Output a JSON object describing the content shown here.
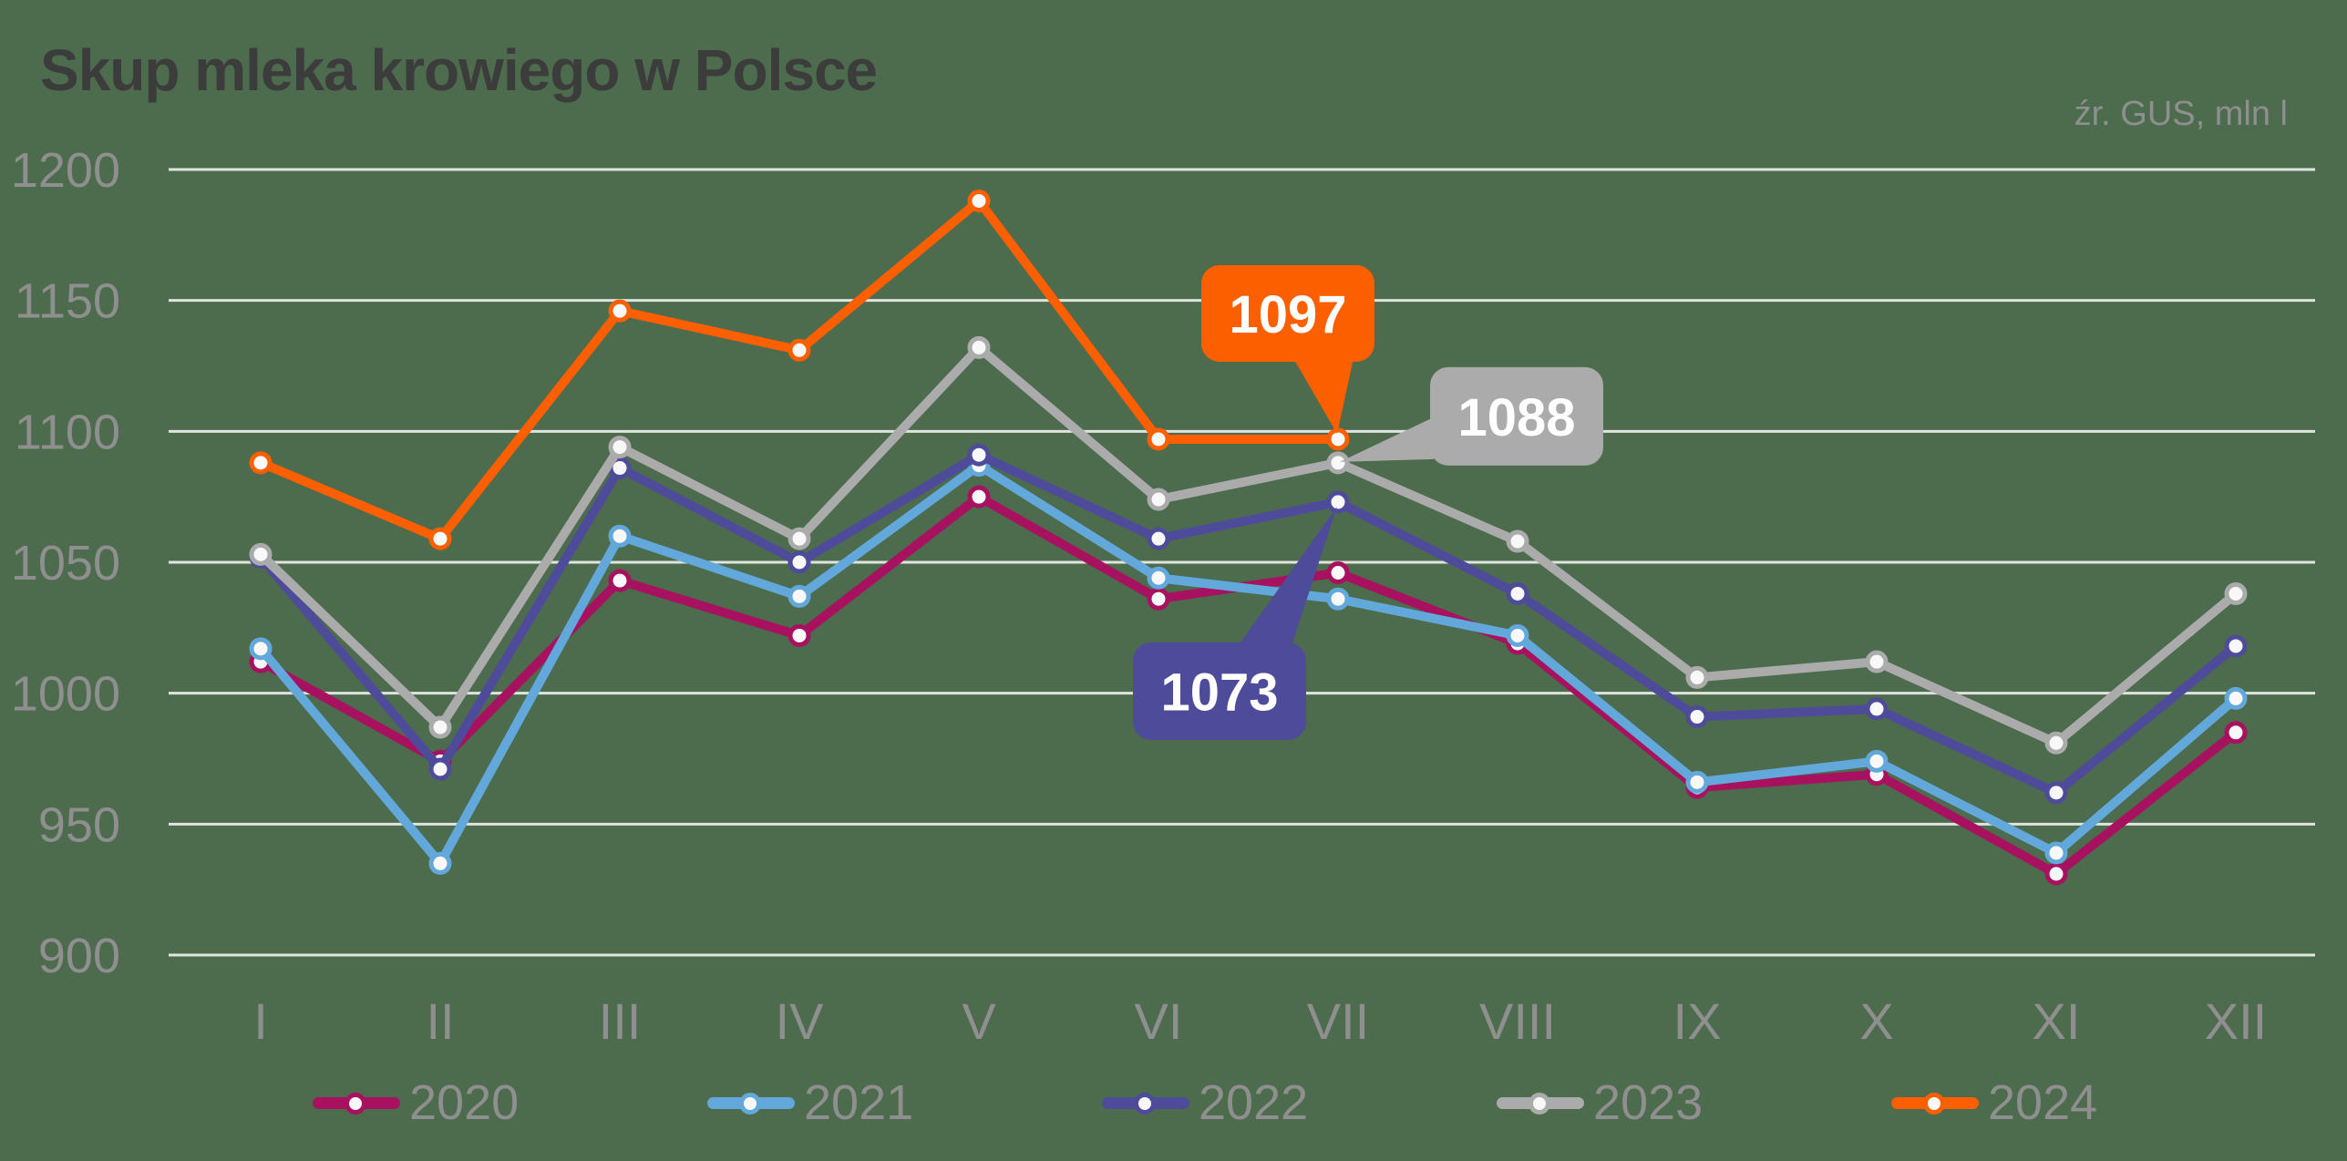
{
  "title": "Skup mleka krowiego w Polsce",
  "source_note": "źr. GUS, mln l",
  "colors": {
    "background": "#4d6b4d",
    "grid": "rgba(255,255,255,0.82)",
    "axis_text": "#8f8f8f",
    "title_text": "#3c3c3c",
    "marker_fill": "#f8f8f8",
    "callout_text": "#ffffff"
  },
  "chart_data": {
    "type": "line",
    "title": "Skup mleka krowiego w Polsce",
    "source": "źr. GUS, mln l",
    "unit": "mln l",
    "x_labels": [
      "I",
      "II",
      "III",
      "IV",
      "V",
      "VI",
      "VII",
      "VIII",
      "IX",
      "X",
      "XI",
      "XII"
    ],
    "ylim": [
      900,
      1200
    ],
    "yticks": [
      1200,
      1150,
      1100,
      1050,
      1000,
      950,
      900
    ],
    "grid": true,
    "legend_position": "bottom",
    "series": [
      {
        "name": "2020",
        "color": "#a81160",
        "values": [
          1012,
          974,
          1043,
          1022,
          1075,
          1036,
          1046,
          1019,
          964,
          969,
          931,
          985
        ]
      },
      {
        "name": "2021",
        "color": "#62a8db",
        "values": [
          1017,
          935,
          1060,
          1037,
          1087,
          1044,
          1036,
          1022,
          966,
          974,
          939,
          998
        ]
      },
      {
        "name": "2022",
        "color": "#4f4b9b",
        "values": [
          1052,
          971,
          1086,
          1050,
          1091,
          1059,
          1073,
          1038,
          991,
          994,
          962,
          1018
        ]
      },
      {
        "name": "2023",
        "color": "#ababab",
        "values": [
          1053,
          987,
          1094,
          1059,
          1132,
          1074,
          1088,
          1058,
          1006,
          1012,
          981,
          1038
        ]
      },
      {
        "name": "2024",
        "color": "#fc5f00",
        "values": [
          1088,
          1059,
          1146,
          1131,
          1188,
          1097,
          1097,
          null,
          null,
          null,
          null,
          null
        ]
      }
    ],
    "callouts": [
      {
        "series": "2024",
        "month": "VII",
        "label": "1097",
        "placement": "above"
      },
      {
        "series": "2023",
        "month": "VII",
        "label": "1088",
        "placement": "right"
      },
      {
        "series": "2022",
        "month": "VII",
        "label": "1073",
        "placement": "below-left"
      }
    ]
  }
}
